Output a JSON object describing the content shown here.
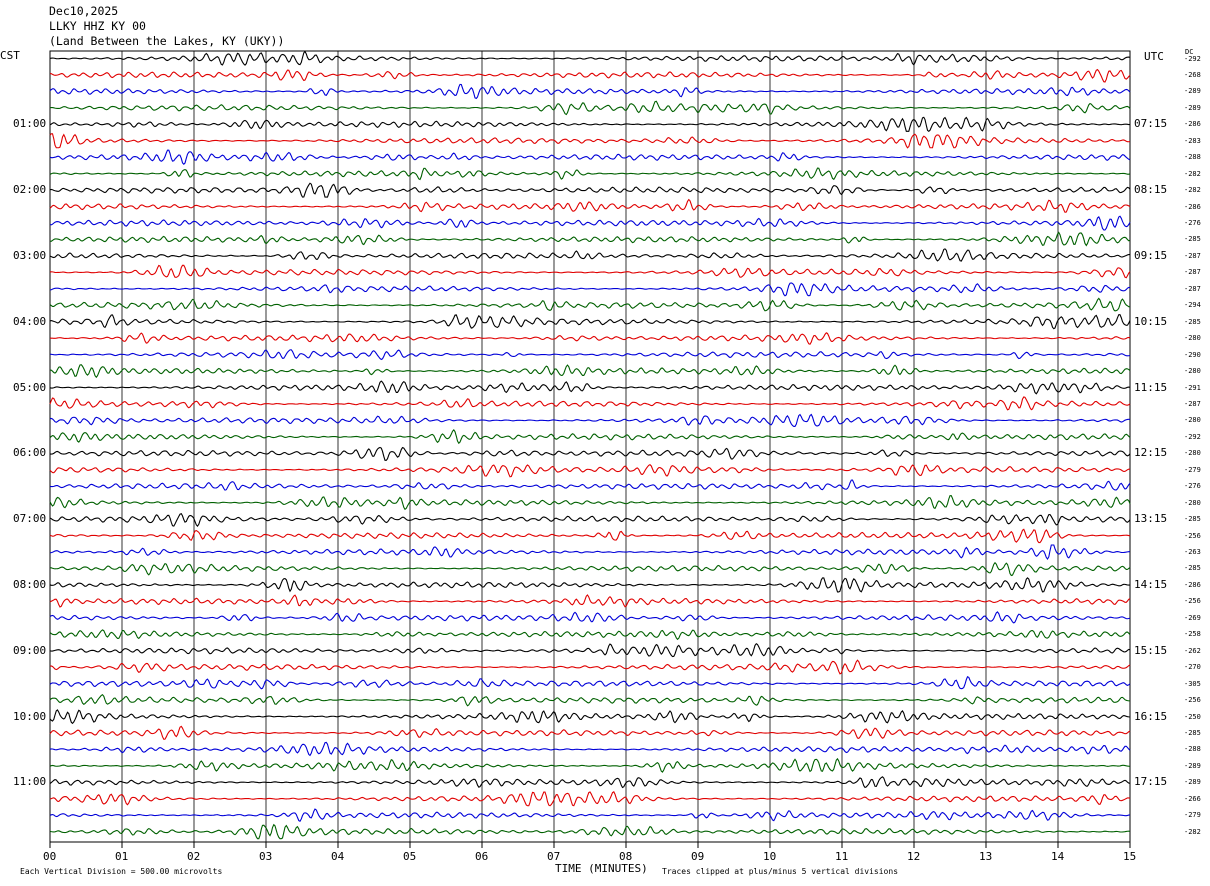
{
  "header": {
    "date": "Dec10,2025",
    "station": "LLKY HHZ KY 00",
    "location": "(Land Between the Lakes, KY (UKY))"
  },
  "left_axis_label": "CST",
  "right_axis_label": "UTC",
  "dc_label": "DC",
  "x_axis_label": "TIME (MINUTES)",
  "footer": {
    "scale_note": "Each Vertical Division =  500.00 microvolts",
    "clip_note": "Traces clipped at plus/minus 5 vertical divisions"
  },
  "chart_data": {
    "type": "line",
    "x_ticks": [
      "00",
      "01",
      "02",
      "03",
      "04",
      "05",
      "06",
      "07",
      "08",
      "09",
      "10",
      "11",
      "12",
      "13",
      "14",
      "15"
    ],
    "xlim": [
      0,
      15
    ],
    "trace_colors": [
      "#000000",
      "#e00000",
      "#0000d8",
      "#006000"
    ],
    "trace_count": 48,
    "minutes_per_trace": 15,
    "left_hour_labels": [
      "01:00",
      "02:00",
      "03:00",
      "04:00",
      "05:00",
      "06:00",
      "07:00",
      "08:00",
      "09:00",
      "10:00",
      "11:00"
    ],
    "right_hour_labels": [
      "07:15",
      "08:15",
      "09:15",
      "10:15",
      "11:15",
      "12:15",
      "13:15",
      "14:15",
      "15:15",
      "16:15",
      "17:15"
    ],
    "dc_offsets": [
      "-292",
      "-268",
      "-289",
      "-289",
      "-286",
      "-283",
      "-288",
      "-282",
      "-282",
      "-286",
      "-276",
      "-285",
      "-287",
      "-287",
      "-287",
      "-294",
      "-285",
      "-280",
      "-290",
      "-280",
      "-291",
      "-287",
      "-280",
      "-292",
      "-280",
      "-279",
      "-276",
      "-280",
      "-285",
      "-256",
      "-263",
      "-285",
      "-286",
      "-256",
      "-269",
      "-258",
      "-262",
      "-270",
      "-305",
      "-256",
      "-250",
      "-285",
      "-288",
      "-289",
      "-289",
      "-266",
      "-279",
      "-282"
    ],
    "grid": true
  }
}
